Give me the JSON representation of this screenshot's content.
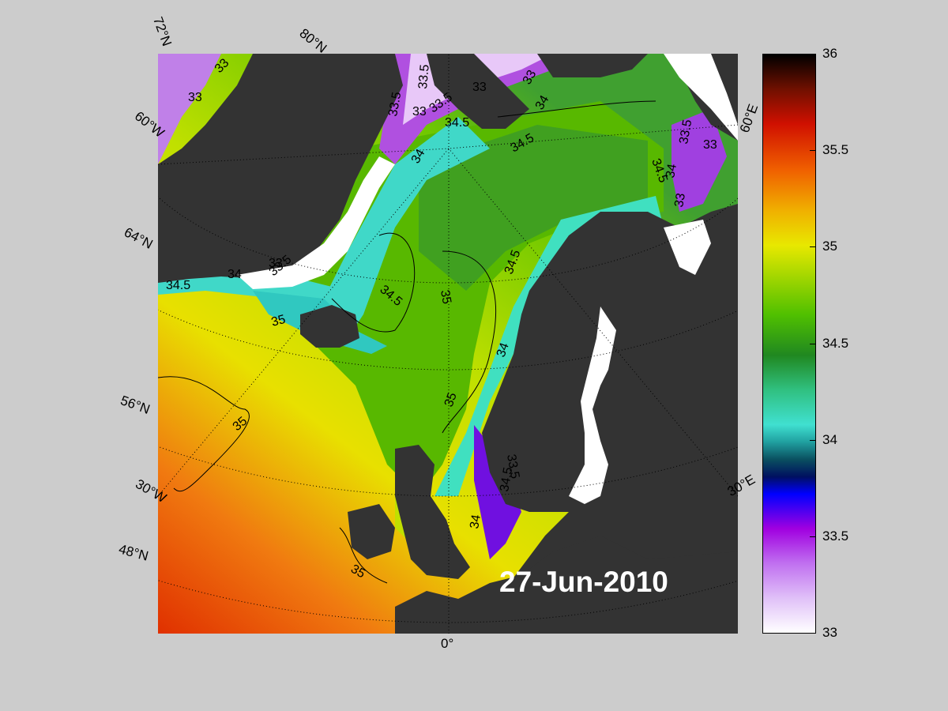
{
  "date_label": "27-Jun-2010",
  "graticule_labels": {
    "lat_72": "72°N",
    "lat_80": "80°N",
    "lon_60w": "60°W",
    "lat_64": "64°N",
    "lat_56": "56°N",
    "lon_30w": "30°W",
    "lat_48": "48°N",
    "lon_0": "0°",
    "lon_30e": "30°E",
    "lon_60e": "60°E"
  },
  "contour_labels": [
    {
      "id": "c1",
      "text": "33"
    },
    {
      "id": "c2",
      "text": "33"
    },
    {
      "id": "c3",
      "text": "33.5"
    },
    {
      "id": "c4",
      "text": "33"
    },
    {
      "id": "c5",
      "text": "33"
    },
    {
      "id": "c6",
      "text": "33.5"
    },
    {
      "id": "c7",
      "text": "34.5"
    },
    {
      "id": "c8",
      "text": "34"
    },
    {
      "id": "c9",
      "text": "33"
    },
    {
      "id": "c10",
      "text": "34"
    },
    {
      "id": "c11",
      "text": "34.5"
    },
    {
      "id": "c12",
      "text": "34.5"
    },
    {
      "id": "c13",
      "text": "33.5"
    },
    {
      "id": "c14",
      "text": "33"
    },
    {
      "id": "c15",
      "text": "34"
    },
    {
      "id": "c16",
      "text": "33"
    },
    {
      "id": "c17",
      "text": "34.5"
    },
    {
      "id": "c18",
      "text": "34"
    },
    {
      "id": "c19",
      "text": "33.5"
    },
    {
      "id": "c20",
      "text": "33"
    },
    {
      "id": "c21",
      "text": "35"
    },
    {
      "id": "c22",
      "text": "34.5"
    },
    {
      "id": "c23",
      "text": "35"
    },
    {
      "id": "c24",
      "text": "34.5"
    },
    {
      "id": "c25",
      "text": "34"
    },
    {
      "id": "c26",
      "text": "35"
    },
    {
      "id": "c27",
      "text": "35"
    },
    {
      "id": "c28",
      "text": "33.5"
    },
    {
      "id": "c29",
      "text": "34"
    },
    {
      "id": "c30",
      "text": "35"
    },
    {
      "id": "c31",
      "text": "34.5"
    },
    {
      "id": "c32",
      "text": "33.5"
    }
  ],
  "colorbar": {
    "ticks": [
      "36",
      "35.5",
      "35",
      "34.5",
      "34",
      "33.5",
      "33"
    ],
    "min": 33,
    "max": 36,
    "colors": {
      "c33": "#ffffff",
      "c33_5": "#a000e0",
      "c33_8": "#0000ff",
      "c34": "#0a5060",
      "c34_2": "#30c8c0",
      "c34_5": "#40e0a0",
      "c34_8": "#20a020",
      "c35": "#50c000",
      "c35_2": "#e0e800",
      "c35_5": "#f07000",
      "c35_8": "#d01000",
      "c36": "#000000"
    }
  },
  "land_color": "#333333",
  "ice_color": "#ffffff"
}
